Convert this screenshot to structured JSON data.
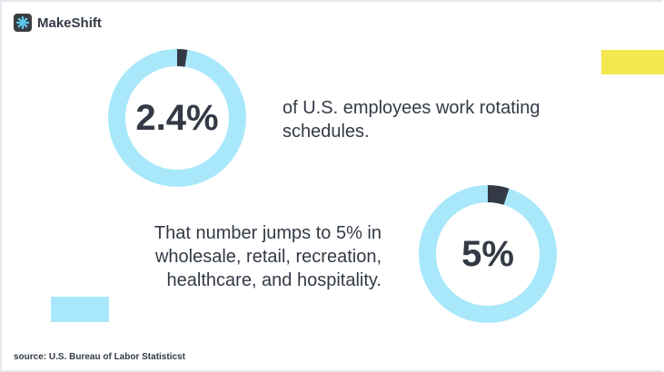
{
  "brand": {
    "name": "MakeShift",
    "icon": "asterisk-logo-icon"
  },
  "colors": {
    "ring": "#a8e8fa",
    "highlight": "#333a45",
    "accent_yellow": "#f4e84e",
    "accent_blue": "#a8e8fa"
  },
  "chart_data": [
    {
      "type": "pie",
      "style": "donut",
      "label": "2.4%",
      "values": [
        2.4,
        97.6
      ]
    },
    {
      "type": "pie",
      "style": "donut",
      "label": "5%",
      "values": [
        5,
        95
      ]
    }
  ],
  "stat1": {
    "text_line1": "of U.S. employees work rotating",
    "text_line2": "schedules."
  },
  "stat2": {
    "text_line1": "That number jumps to 5% in",
    "text_line2": "wholesale, retail, recreation,",
    "text_line3": "healthcare, and hospitality."
  },
  "source": "source: U.S. Bureau of Labor Statisticst"
}
